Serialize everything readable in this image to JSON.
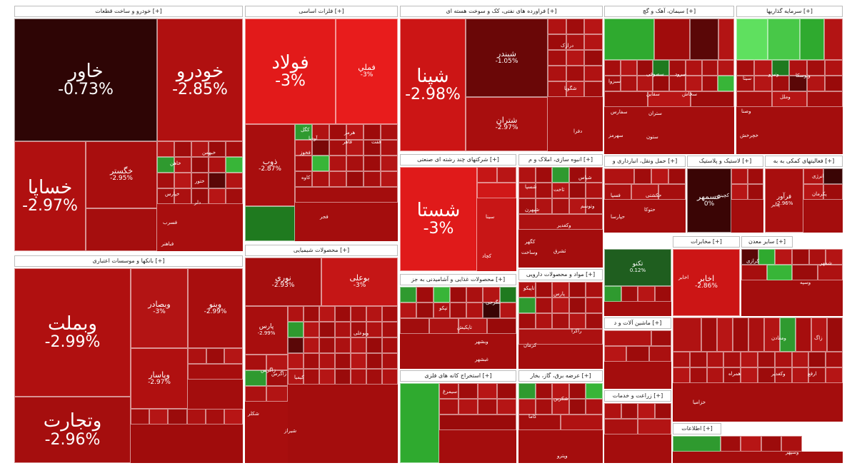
{
  "sectors": [
    {
      "label": "خودرو و ساخت قطعات [+]"
    },
    {
      "label": "فلزات اساسی [+]"
    },
    {
      "label": "فراورده های نفتی، کک و سوخت هسته ای [+]"
    },
    {
      "label": "سیمان، آهک و گچ [+]"
    },
    {
      "label": "سرمایه گذاریها [+]"
    },
    {
      "label": "بانکها و موسسات اعتباری [+]"
    },
    {
      "label": "محصولات شیمیایی [+]"
    },
    {
      "label": "شرکتهای چند رشته ای صنعتی [+]"
    },
    {
      "label": "انبوه سازی، املاک و م [+]"
    },
    {
      "label": "محصولات غذایی و آشامیدنی به جز [+]"
    },
    {
      "label": "مواد و محصولات دارویی [+]"
    },
    {
      "label": "استخراج کانه های فلزی [+]"
    },
    {
      "label": "عرضه برق، گاز، بخار [+]"
    },
    {
      "label": "حمل ونقل، انبارداری و [+]"
    },
    {
      "label": "لاستیک و پلاستیک [+]"
    },
    {
      "label": "فعالیتهای کمکی به به [+]"
    },
    {
      "label": "ماشین آلات و د [+]"
    },
    {
      "label": "مخابرات [+]"
    },
    {
      "label": "سایر معدن [+]"
    },
    {
      "label": "زراعت و خدمات [+]"
    },
    {
      "label": "اطلاعات [+]"
    }
  ],
  "tiles": [
    {
      "name": "خاور",
      "pct": "-0.73%"
    },
    {
      "name": "خودرو",
      "pct": "-2.85%"
    },
    {
      "name": "خساپا",
      "pct": "-2.97%"
    },
    {
      "name": "خگستر",
      "pct": "-2.95%"
    },
    {
      "name": "وبملت",
      "pct": "-2.99%"
    },
    {
      "name": "وتجارت",
      "pct": "-2.96%"
    },
    {
      "name": "وبصادر",
      "pct": "-3%"
    },
    {
      "name": "وبنو",
      "pct": "-2.99%"
    },
    {
      "name": "وپاسار",
      "pct": "-2.97%"
    },
    {
      "name": "فولاد",
      "pct": "-3%"
    },
    {
      "name": "فملي",
      "pct": "-3%"
    },
    {
      "name": "ذوب",
      "pct": "-2.87%"
    },
    {
      "name": "شپنا",
      "pct": "-2.98%"
    },
    {
      "name": "شبندر",
      "pct": "-1.05%"
    },
    {
      "name": "شتران",
      "pct": "-2.97%"
    },
    {
      "name": "شستا",
      "pct": "-3%"
    },
    {
      "name": "نوري",
      "pct": "-2.93%"
    },
    {
      "name": "پارس",
      "pct": "-2.99%"
    },
    {
      "name": "بوعلی",
      "pct": "-3%"
    },
    {
      "name": "اخابر",
      "pct": "-2.86%"
    },
    {
      "name": "عسمهر",
      "pct": "0%"
    },
    {
      "name": "فرآور",
      "pct": "-2.96%"
    },
    {
      "name": "تکنو",
      "pct": "0.12%"
    }
  ],
  "small_labels": [
    "کگل",
    "فخوز",
    "کاوه",
    "فجر",
    "هرمز",
    "آودیا",
    "فاهر",
    "ففت",
    "شپاس",
    "شسپا",
    "شبهرن",
    "سینا",
    "کچاد",
    "کگهر",
    "وکغدیر",
    "تاپیکو",
    "کرمان",
    "پارس",
    "راکرا",
    "کاما",
    "شکلر",
    "شیراز",
    "تاپکیش",
    "انرژی",
    "کرازی",
    "شمهر",
    "ونیرو",
    "وتوسکا",
    "سیتا",
    "وصنا",
    "وملل",
    "خچرخش",
    "خپارس",
    "فسرب",
    "فباهنر",
    "خبهمن",
    "خاهن",
    "ختور",
    "دلر",
    "دفرا",
    "درازک",
    "شگویا",
    "ستران",
    "سفارس",
    "سبزوا",
    "سخاش",
    "سرود",
    "سصوفی",
    "سقاین",
    "ستون",
    "سهرمز",
    "وبوعلی",
    "کیمیا",
    "فسپا",
    "زاگرس",
    "تپکو",
    "وبشهر",
    "غبشهر",
    "غگرجی",
    "وساخت",
    "ثشرق",
    "وتوسم",
    "ثاخت",
    "حکشتی",
    "حتوکا",
    "حپارسا",
    "وپترو",
    "شکربن",
    "سیمرغ",
    "زاگرس",
    "اخابر",
    "همراه",
    "وسپه",
    "ومعادن",
    "پتایر",
    "پکرمان",
    "کچینی",
    "زاگ",
    "ارفع",
    "وسپهر",
    "خزامیا",
    "وکغدیر"
  ]
}
